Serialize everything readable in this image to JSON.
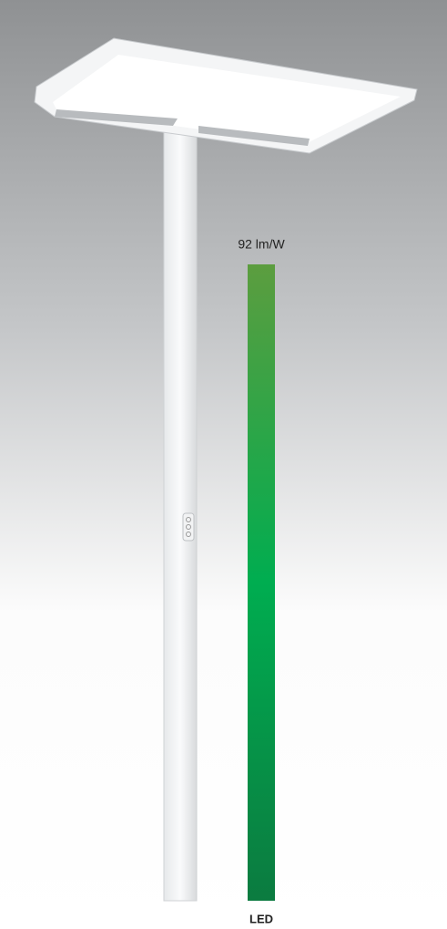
{
  "chart_data": {
    "type": "bar",
    "categories": [
      "LED"
    ],
    "values": [
      92
    ],
    "value_labels": [
      "92 lm/W"
    ],
    "color": [
      "#5c9d3f",
      "#00ad50",
      "#0b7b40"
    ],
    "ylim": [
      0,
      92
    ]
  }
}
